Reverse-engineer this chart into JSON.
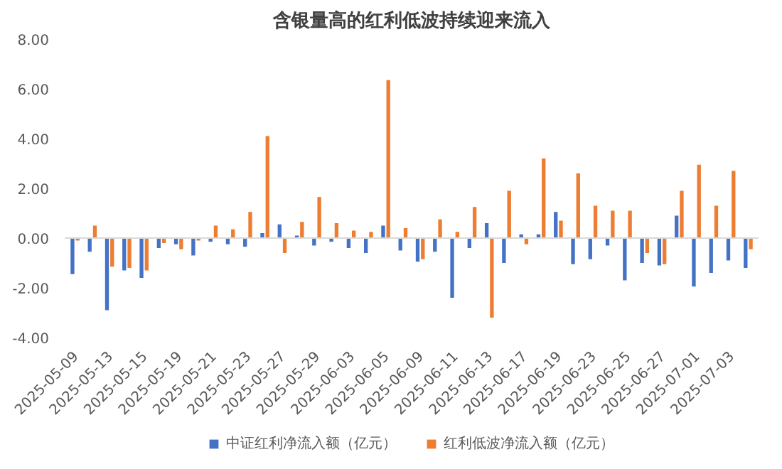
{
  "chart_data": {
    "type": "bar",
    "title": "含银量高的红利低波持续迎来流入",
    "categories": [
      "2025-05-09",
      null,
      "2025-05-13",
      null,
      "2025-05-15",
      null,
      "2025-05-19",
      null,
      "2025-05-21",
      null,
      "2025-05-23",
      null,
      "2025-05-27",
      null,
      "2025-05-29",
      null,
      "2025-06-03",
      null,
      "2025-06-05",
      null,
      "2025-06-09",
      null,
      "2025-06-11",
      null,
      "2025-06-13",
      null,
      "2025-06-17",
      null,
      "2025-06-19",
      null,
      "2025-06-23",
      null,
      "2025-06-25",
      null,
      "2025-06-27",
      null,
      "2025-07-01",
      null,
      "2025-07-03",
      null
    ],
    "series": [
      {
        "name": "中证红利净流入额（亿元）",
        "color": "#4472c4",
        "values": [
          -1.45,
          -0.55,
          -2.9,
          -1.3,
          -1.6,
          -0.4,
          -0.25,
          -0.7,
          -0.15,
          -0.25,
          -0.35,
          0.2,
          0.55,
          0.1,
          -0.3,
          -0.15,
          -0.4,
          -0.6,
          0.5,
          -0.5,
          -0.95,
          -0.55,
          -2.4,
          -0.4,
          0.6,
          -1.0,
          0.15,
          0.15,
          1.05,
          -1.05,
          -0.85,
          -0.3,
          -1.7,
          -1.0,
          -1.1,
          0.9,
          -1.95,
          -1.4,
          -0.9,
          -1.2
        ]
      },
      {
        "name": "红利低波净流入额（亿元）",
        "color": "#ed7d31",
        "values": [
          -0.1,
          0.5,
          -1.15,
          -1.2,
          -1.3,
          -0.2,
          -0.45,
          -0.1,
          0.5,
          0.35,
          1.05,
          4.1,
          -0.6,
          0.65,
          1.65,
          0.6,
          0.3,
          0.25,
          6.35,
          0.4,
          -0.85,
          0.75,
          0.25,
          1.25,
          -3.2,
          1.9,
          -0.25,
          3.2,
          0.7,
          2.6,
          1.3,
          1.1,
          1.1,
          -0.6,
          -1.05,
          1.9,
          2.95,
          1.3,
          2.7,
          -0.45
        ]
      }
    ],
    "ylim": [
      -4,
      8
    ],
    "yticks": [
      {
        "value": -4,
        "label": "-4.00"
      },
      {
        "value": -2,
        "label": "-2.00"
      },
      {
        "value": 0,
        "label": "0.00"
      },
      {
        "value": 2,
        "label": "2.00"
      },
      {
        "value": 4,
        "label": "4.00"
      },
      {
        "value": 6,
        "label": "6.00"
      },
      {
        "value": 8,
        "label": "8.00"
      }
    ],
    "legend": "bottom"
  }
}
